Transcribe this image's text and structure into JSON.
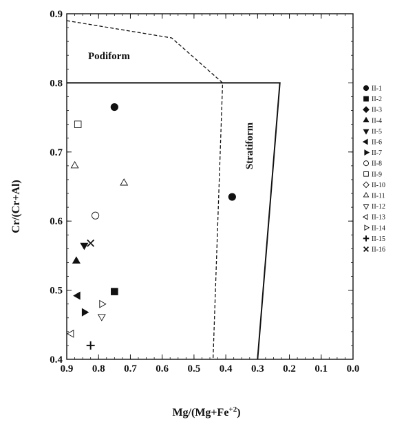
{
  "chart_data": {
    "type": "scatter",
    "title": "",
    "xlabel": "Mg/(Mg+Fe+2)",
    "ylabel": "Cr/(Cr+Al)",
    "xlim": [
      0.9,
      0.0
    ],
    "ylim": [
      0.4,
      0.9
    ],
    "x_ticks": [
      "0.9",
      "0.8",
      "0.7",
      "0.6",
      "0.5",
      "0.4",
      "0.3",
      "0.2",
      "0.1",
      "0.0"
    ],
    "y_ticks": [
      "0.9",
      "0.8",
      "0.7",
      "0.6",
      "0.5",
      "0.4"
    ],
    "grid": false,
    "legend_position": "right",
    "fields": [
      {
        "name": "Podiform",
        "style": "dashed",
        "points": [
          [
            0.9,
            0.89
          ],
          [
            0.57,
            0.865
          ],
          [
            0.41,
            0.8
          ],
          [
            0.44,
            0.4
          ]
        ]
      },
      {
        "name": "Stratiform",
        "style": "solid",
        "points": [
          [
            0.9,
            0.8
          ],
          [
            0.23,
            0.8
          ],
          [
            0.3,
            0.4
          ]
        ]
      }
    ],
    "series": [
      {
        "name": "II-1",
        "marker": "circle-filled",
        "points": [
          [
            0.75,
            0.765
          ],
          [
            0.38,
            0.635
          ]
        ]
      },
      {
        "name": "II-2",
        "marker": "square-filled",
        "points": [
          [
            0.75,
            0.498
          ]
        ]
      },
      {
        "name": "II-3",
        "marker": "diamond-filled",
        "points": []
      },
      {
        "name": "II-4",
        "marker": "triangle-up-filled",
        "points": [
          [
            0.87,
            0.542
          ]
        ]
      },
      {
        "name": "II-5",
        "marker": "triangle-down-filled",
        "points": [
          [
            0.845,
            0.565
          ]
        ]
      },
      {
        "name": "II-6",
        "marker": "triangle-left-filled",
        "points": [
          [
            0.865,
            0.492
          ]
        ]
      },
      {
        "name": "II-7",
        "marker": "triangle-right-filled",
        "points": [
          [
            0.845,
            0.468
          ]
        ]
      },
      {
        "name": "II-8",
        "marker": "circle-open",
        "points": [
          [
            0.81,
            0.608
          ]
        ]
      },
      {
        "name": "II-9",
        "marker": "square-open",
        "points": [
          [
            0.865,
            0.74
          ]
        ]
      },
      {
        "name": "II-10",
        "marker": "diamond-open",
        "points": []
      },
      {
        "name": "II-11",
        "marker": "triangle-up-open",
        "points": [
          [
            0.72,
            0.655
          ],
          [
            0.875,
            0.68
          ]
        ]
      },
      {
        "name": "II-12",
        "marker": "triangle-down-open",
        "points": [
          [
            0.79,
            0.462
          ]
        ]
      },
      {
        "name": "II-13",
        "marker": "triangle-left-open",
        "points": [
          [
            0.885,
            0.437
          ]
        ]
      },
      {
        "name": "II-14",
        "marker": "triangle-right-open",
        "points": [
          [
            0.79,
            0.48
          ]
        ]
      },
      {
        "name": "II-15",
        "marker": "plus",
        "points": [
          [
            0.825,
            0.42
          ]
        ]
      },
      {
        "name": "II-16",
        "marker": "x",
        "points": [
          [
            0.825,
            0.568
          ]
        ]
      }
    ]
  }
}
